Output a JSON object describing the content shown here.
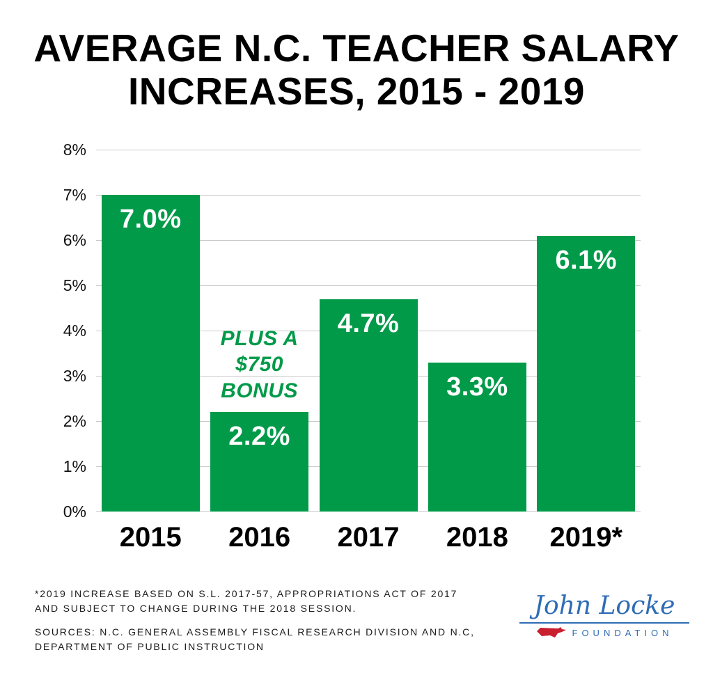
{
  "title": {
    "line1": "AVERAGE N.C. TEACHER SALARY",
    "line2": "INCREASES, 2015 - 2019"
  },
  "chart_data": {
    "type": "bar",
    "title": "AVERAGE N.C. TEACHER SALARY INCREASES, 2015 - 2019",
    "categories": [
      "2015",
      "2016",
      "2017",
      "2018",
      "2019*"
    ],
    "values": [
      7.0,
      2.2,
      4.7,
      3.3,
      6.1
    ],
    "bar_labels": [
      "7.0%",
      "2.2%",
      "4.7%",
      "3.3%",
      "6.1%"
    ],
    "y_ticks": [
      "8%",
      "7%",
      "6%",
      "5%",
      "4%",
      "3%",
      "2%",
      "1%",
      "0%"
    ],
    "ylim": [
      0,
      8
    ],
    "xlabel": "",
    "ylabel": "",
    "grid": true,
    "legend": "none",
    "bar_color": "#009A49",
    "annotation": {
      "target": "2016",
      "lines": [
        "PLUS A",
        "$750",
        "BONUS"
      ],
      "color": "#009A49"
    }
  },
  "footnotes": {
    "note1": "*2019 INCREASE BASED ON S.L. 2017-57, APPROPRIATIONS ACT OF 2017 AND SUBJECT TO CHANGE DURING THE 2018 SESSION.",
    "note2": "SOURCES: N.C. GENERAL ASSEMBLY FISCAL RESEARCH DIVISION AND N.C, DEPARTMENT OF PUBLIC INSTRUCTION"
  },
  "logo": {
    "name": "John Locke",
    "subtitle": "FOUNDATION"
  },
  "colors": {
    "bar_green": "#009A49",
    "title_black": "#000000",
    "grid_gray": "#c9c9c9",
    "logo_blue": "#2e6cb5",
    "logo_red": "#c8202f"
  }
}
